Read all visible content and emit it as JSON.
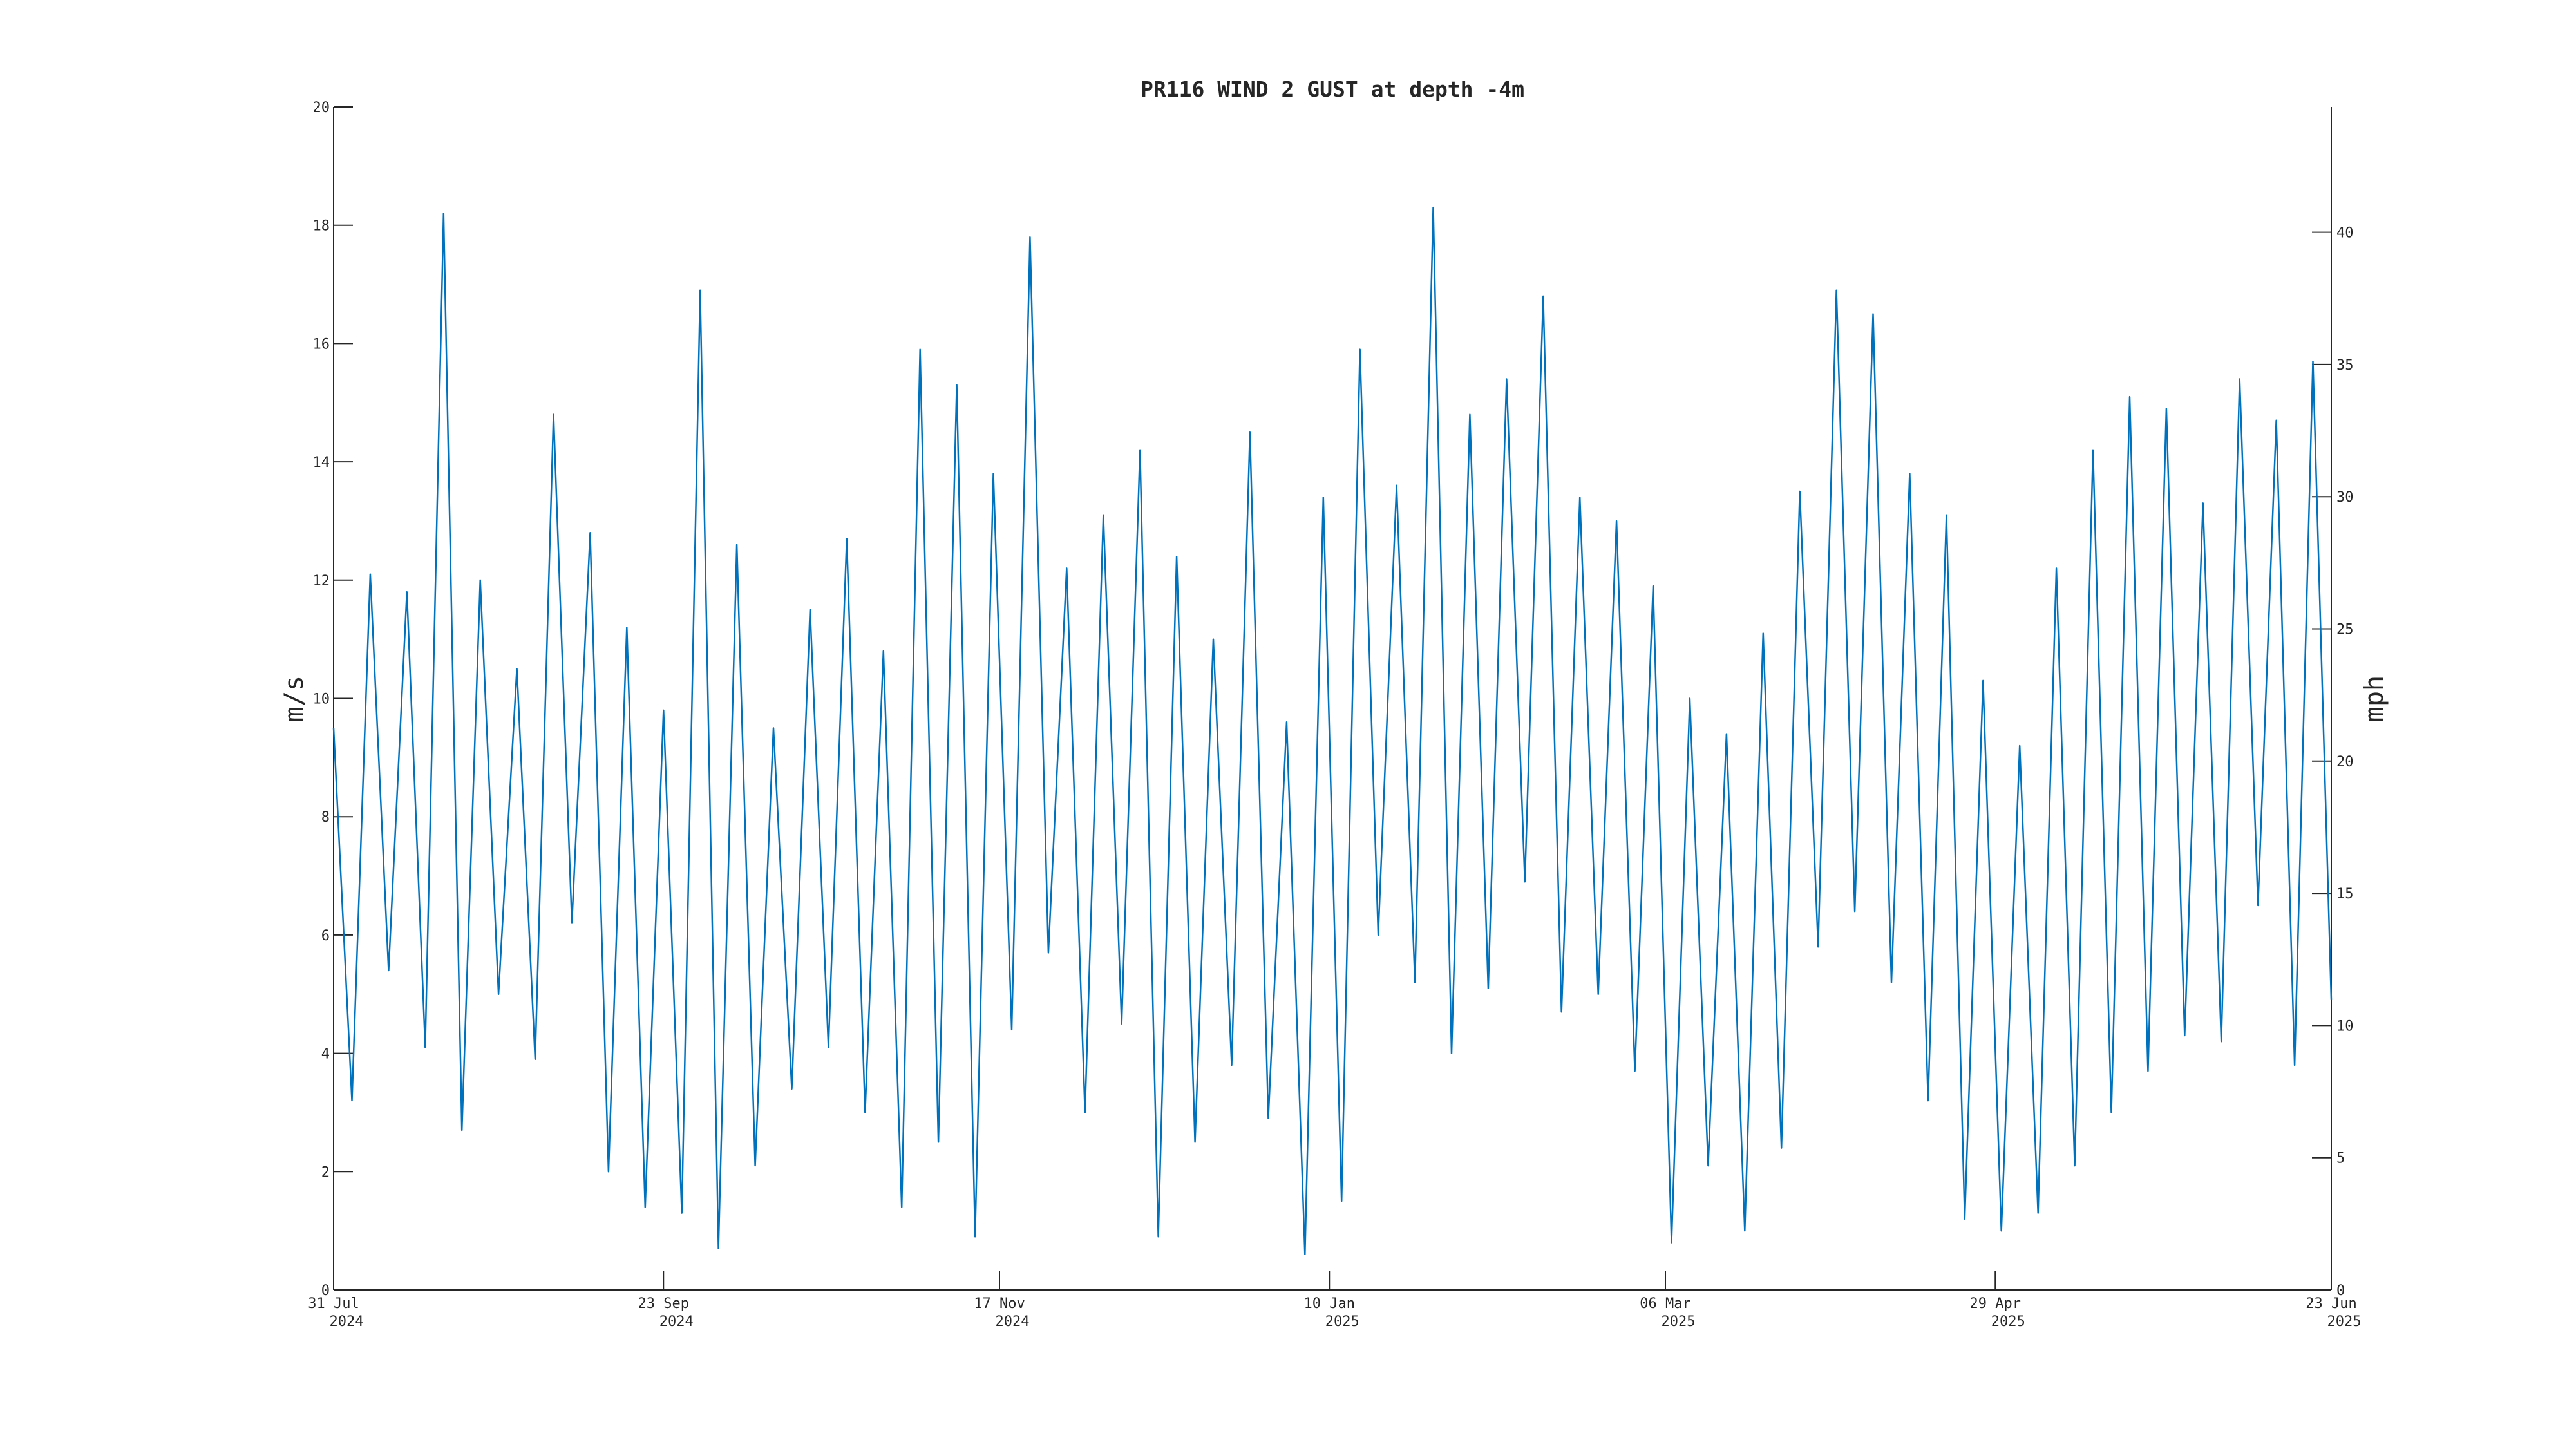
{
  "chart_data": {
    "type": "line",
    "title": "PR116 WIND 2 GUST at depth -4m",
    "ylabel": "m/s",
    "y2label": "mph",
    "x": [
      "2024-07-31",
      "2024-08-03",
      "2024-08-06",
      "2024-08-09",
      "2024-08-12",
      "2024-08-15",
      "2024-08-18",
      "2024-08-21",
      "2024-08-24",
      "2024-08-27",
      "2024-08-30",
      "2024-09-02",
      "2024-09-05",
      "2024-09-08",
      "2024-09-11",
      "2024-09-14",
      "2024-09-17",
      "2024-09-20",
      "2024-09-23",
      "2024-09-26",
      "2024-09-29",
      "2024-10-02",
      "2024-10-05",
      "2024-10-08",
      "2024-10-11",
      "2024-10-14",
      "2024-10-17",
      "2024-10-20",
      "2024-10-23",
      "2024-10-26",
      "2024-10-29",
      "2024-11-01",
      "2024-11-04",
      "2024-11-07",
      "2024-11-10",
      "2024-11-13",
      "2024-11-16",
      "2024-11-19",
      "2024-11-22",
      "2024-11-25",
      "2024-11-28",
      "2024-12-01",
      "2024-12-04",
      "2024-12-07",
      "2024-12-10",
      "2024-12-13",
      "2024-12-16",
      "2024-12-19",
      "2024-12-22",
      "2024-12-25",
      "2024-12-28",
      "2024-12-31",
      "2025-01-03",
      "2025-01-06",
      "2025-01-09",
      "2025-01-12",
      "2025-01-15",
      "2025-01-18",
      "2025-01-21",
      "2025-01-24",
      "2025-01-27",
      "2025-01-30",
      "2025-02-02",
      "2025-02-05",
      "2025-02-08",
      "2025-02-11",
      "2025-02-14",
      "2025-02-17",
      "2025-02-20",
      "2025-02-23",
      "2025-02-26",
      "2025-03-01",
      "2025-03-04",
      "2025-03-07",
      "2025-03-10",
      "2025-03-13",
      "2025-03-16",
      "2025-03-19",
      "2025-03-22",
      "2025-03-25",
      "2025-03-28",
      "2025-03-31",
      "2025-04-03",
      "2025-04-06",
      "2025-04-09",
      "2025-04-12",
      "2025-04-15",
      "2025-04-18",
      "2025-04-21",
      "2025-04-24",
      "2025-04-27",
      "2025-04-30",
      "2025-05-03",
      "2025-05-06",
      "2025-05-09",
      "2025-05-12",
      "2025-05-15",
      "2025-05-18",
      "2025-05-21",
      "2025-05-24",
      "2025-05-27",
      "2025-05-30",
      "2025-06-02",
      "2025-06-05",
      "2025-06-08",
      "2025-06-11",
      "2025-06-14",
      "2025-06-17",
      "2025-06-20",
      "2025-06-23"
    ],
    "series": [
      {
        "color": "#0072bd",
        "values": [
          9.5,
          3.2,
          12.1,
          5.4,
          11.8,
          4.1,
          18.2,
          2.7,
          12.0,
          5.0,
          10.5,
          3.9,
          14.8,
          6.2,
          12.8,
          2.0,
          11.2,
          1.4,
          9.8,
          1.3,
          16.9,
          0.7,
          12.6,
          2.1,
          9.5,
          3.4,
          11.5,
          4.1,
          12.7,
          3.0,
          10.8,
          1.4,
          15.9,
          2.5,
          15.3,
          0.9,
          13.8,
          4.4,
          17.8,
          5.7,
          12.2,
          3.0,
          13.1,
          4.5,
          14.2,
          0.9,
          12.4,
          2.5,
          11.0,
          3.8,
          14.5,
          2.9,
          9.6,
          0.6,
          13.4,
          1.5,
          15.9,
          6.0,
          13.6,
          5.2,
          18.3,
          4.0,
          14.8,
          5.1,
          15.4,
          6.9,
          16.8,
          4.7,
          13.4,
          5.0,
          13.0,
          3.7,
          11.9,
          0.8,
          10.0,
          2.1,
          9.4,
          1.0,
          11.1,
          2.4,
          13.5,
          5.8,
          16.9,
          6.4,
          16.5,
          5.2,
          13.8,
          3.2,
          13.1,
          1.2,
          10.3,
          1.0,
          9.2,
          1.3,
          12.2,
          2.1,
          14.2,
          3.0,
          15.1,
          3.7,
          14.9,
          4.3,
          13.3,
          4.2,
          15.4,
          6.5,
          14.7,
          3.8,
          15.7,
          4.9
        ]
      }
    ],
    "xlim": [
      "2024-07-31",
      "2025-06-23"
    ],
    "xticks": [
      {
        "value": "2024-07-31",
        "label": "31 Jul\n2024"
      },
      {
        "value": "2024-09-23",
        "label": "23 Sep\n2024"
      },
      {
        "value": "2024-11-17",
        "label": "17 Nov\n2024"
      },
      {
        "value": "2025-01-10",
        "label": "10 Jan\n2025"
      },
      {
        "value": "2025-03-06",
        "label": "06 Mar\n2025"
      },
      {
        "value": "2025-04-29",
        "label": "29 Apr\n2025"
      },
      {
        "value": "2025-06-23",
        "label": "23 Jun\n2025"
      }
    ],
    "ylim": [
      0,
      20
    ],
    "yticks": [
      0,
      2,
      4,
      6,
      8,
      10,
      12,
      14,
      16,
      18,
      20
    ],
    "y2lim": [
      0,
      44.74
    ],
    "y2ticks": [
      0,
      5,
      10,
      15,
      20,
      25,
      30,
      35,
      40
    ]
  }
}
